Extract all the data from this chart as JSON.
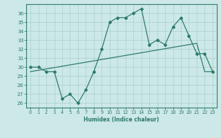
{
  "humidex_x": [
    0,
    1,
    2,
    3,
    4,
    5,
    6,
    7,
    8,
    9,
    10,
    11,
    12,
    13,
    14,
    15,
    16,
    17,
    18,
    19,
    20,
    21,
    22,
    23
  ],
  "humidex_y": [
    30,
    30,
    29.5,
    29.5,
    26.5,
    27,
    26,
    27.5,
    29.5,
    32,
    35,
    35.5,
    35.5,
    36,
    36.5,
    32.5,
    33,
    32.5,
    34.5,
    35.5,
    33.5,
    31.5,
    31.5,
    29.5
  ],
  "trend_y": [
    29.5,
    29.65,
    29.8,
    29.95,
    30.1,
    30.25,
    30.4,
    30.55,
    30.7,
    30.85,
    31.0,
    31.15,
    31.3,
    31.45,
    31.6,
    31.75,
    31.9,
    32.05,
    32.2,
    32.35,
    32.5,
    32.65,
    29.5,
    29.5
  ],
  "line_color": "#2d7a68",
  "bg_color": "#cce8e8",
  "grid_color": "#aacece",
  "xlabel": "Humidex (Indice chaleur)",
  "ylim": [
    25.5,
    37.0
  ],
  "xlim": [
    -0.5,
    23.5
  ],
  "yticks": [
    26,
    27,
    28,
    29,
    30,
    31,
    32,
    33,
    34,
    35,
    36
  ],
  "xticks": [
    0,
    1,
    2,
    3,
    4,
    5,
    6,
    7,
    8,
    9,
    10,
    11,
    12,
    13,
    14,
    15,
    16,
    17,
    18,
    19,
    20,
    21,
    22,
    23
  ]
}
